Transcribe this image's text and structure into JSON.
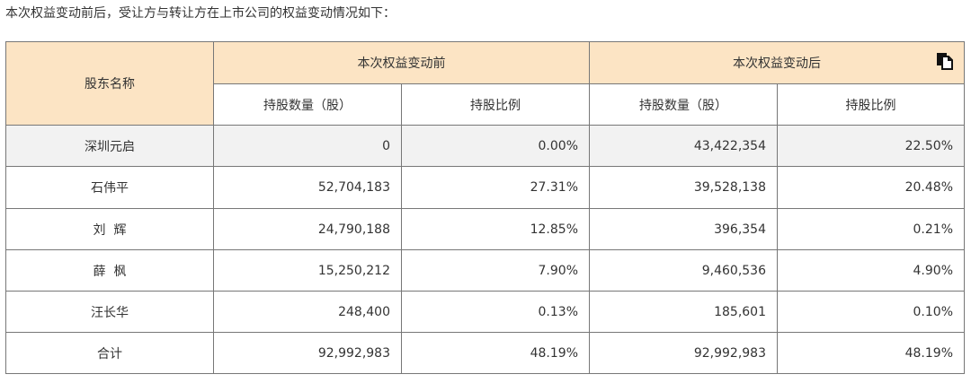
{
  "intro_text": "本次权益变动前后，受让方与转让方在上市公司的权益变动情况如下：",
  "table": {
    "header": {
      "shareholder": "股东名称",
      "group_before": "本次权益变动前",
      "group_after": "本次权益变动后",
      "shares_label_before": "持股数量（股）",
      "ratio_label_before": "持股比例",
      "shares_label_after": "持股数量（股）",
      "ratio_label_after": "持股比例"
    },
    "rows": [
      {
        "name": "深圳元启",
        "shares_before": "0",
        "ratio_before": "0.00%",
        "shares_after": "43,422,354",
        "ratio_after": "22.50%"
      },
      {
        "name": "石伟平",
        "shares_before": "52,704,183",
        "ratio_before": "27.31%",
        "shares_after": "39,528,138",
        "ratio_after": "20.48%"
      },
      {
        "name": "刘  辉",
        "shares_before": "24,790,188",
        "ratio_before": "12.85%",
        "shares_after": "396,354",
        "ratio_after": "0.21%"
      },
      {
        "name": "薛  枫",
        "shares_before": "15,250,212",
        "ratio_before": "7.90%",
        "shares_after": "9,460,536",
        "ratio_after": "4.90%"
      },
      {
        "name": "汪长华",
        "shares_before": "248,400",
        "ratio_before": "0.13%",
        "shares_after": "185,601",
        "ratio_after": "0.10%"
      },
      {
        "name": "合计",
        "shares_before": "92,992,983",
        "ratio_before": "48.19%",
        "shares_after": "92,992,983",
        "ratio_after": "48.19%"
      }
    ]
  },
  "icons": {
    "copy": "copy-icon"
  },
  "colors": {
    "header_bg": "#fce4c4",
    "shaded_row_bg": "#f2f2f2",
    "border": "#777777"
  }
}
